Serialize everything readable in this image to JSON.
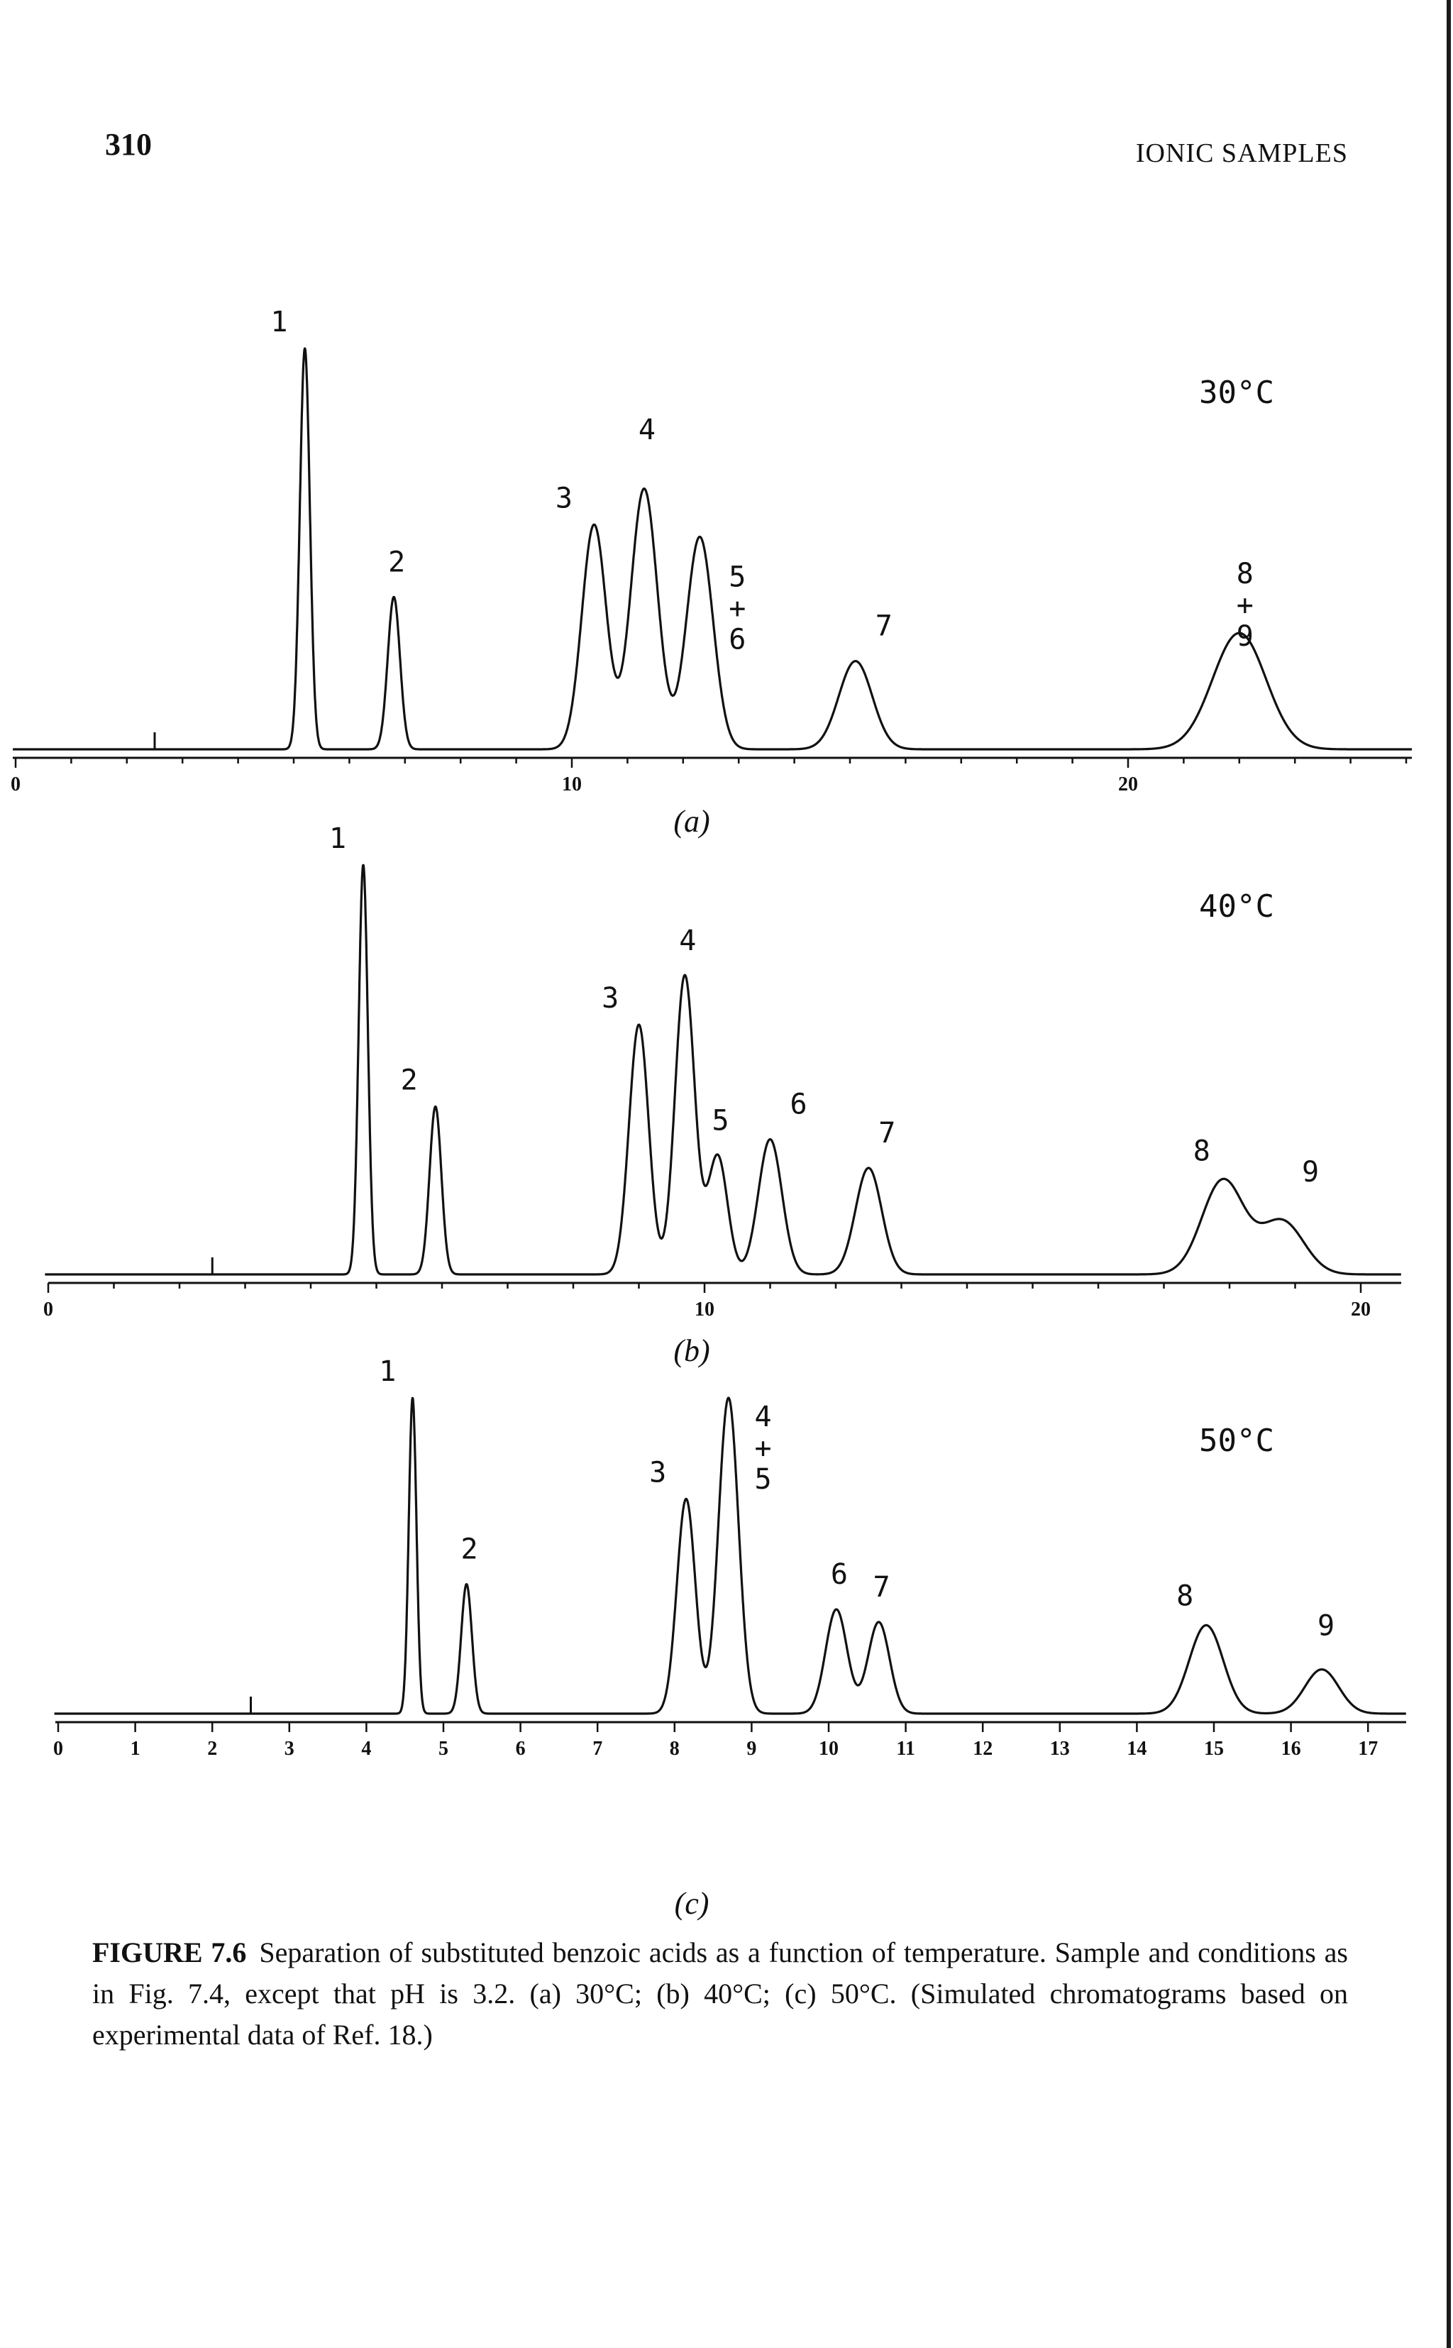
{
  "page": {
    "page_number": "310",
    "running_head": "IONIC SAMPLES"
  },
  "caption": {
    "label": "FIGURE 7.6",
    "text": "Separation of substituted benzoic acids as a function of temperature. Sample and conditions as in Fig. 7.4, except that pH is 3.2. (a) 30°C; (b) 40°C; (c) 50°C. (Simulated chromatograms based on experimental data of Ref. 18.)"
  },
  "colors": {
    "ink": "#111111",
    "paper": "#ffffff"
  },
  "chart_data": [
    {
      "type": "line",
      "panel_label": "(a)",
      "temperature_label": "30°C",
      "injection_mark_x": 2.5,
      "xlim": [
        0,
        25
      ],
      "ylim": [
        0,
        1.0
      ],
      "tick_labels": [
        0,
        10,
        20
      ],
      "minor_ticks": 1,
      "peaks": [
        {
          "label": "1",
          "x": 5.2,
          "height": 1.0,
          "width": 0.09
        },
        {
          "label": "2",
          "x": 6.8,
          "height": 0.38,
          "width": 0.11
        },
        {
          "label": "3",
          "x": 10.4,
          "height": 0.56,
          "width": 0.22
        },
        {
          "label": "4",
          "x": 11.3,
          "height": 0.65,
          "width": 0.24
        },
        {
          "label": "5\n+\n6",
          "x": 12.3,
          "height": 0.53,
          "width": 0.24
        },
        {
          "label": "7",
          "x": 15.1,
          "height": 0.22,
          "width": 0.3
        },
        {
          "label": "8\n+\n9",
          "x": 22.0,
          "height": 0.29,
          "width": 0.48
        }
      ]
    },
    {
      "type": "line",
      "panel_label": "(b)",
      "temperature_label": "40°C",
      "injection_mark_x": 2.5,
      "xlim": [
        0,
        21
      ],
      "ylim": [
        0,
        1.0
      ],
      "tick_labels": [
        0,
        10,
        20
      ],
      "minor_ticks": 1,
      "peaks": [
        {
          "label": "1",
          "x": 4.8,
          "height": 1.0,
          "width": 0.07
        },
        {
          "label": "2",
          "x": 5.9,
          "height": 0.41,
          "width": 0.09
        },
        {
          "label": "3",
          "x": 9.0,
          "height": 0.61,
          "width": 0.15
        },
        {
          "label": "4",
          "x": 9.7,
          "height": 0.73,
          "width": 0.15
        },
        {
          "label": "5",
          "x": 10.2,
          "height": 0.29,
          "width": 0.15
        },
        {
          "label": "6",
          "x": 11.0,
          "height": 0.33,
          "width": 0.18
        },
        {
          "label": "7",
          "x": 12.5,
          "height": 0.26,
          "width": 0.2
        },
        {
          "label": "8",
          "x": 17.9,
          "height": 0.23,
          "width": 0.32
        },
        {
          "label": "9",
          "x": 18.8,
          "height": 0.13,
          "width": 0.33
        }
      ]
    },
    {
      "type": "line",
      "panel_label": "(c)",
      "temperature_label": "50°C",
      "injection_mark_x": 2.5,
      "xlim": [
        0,
        17.5
      ],
      "ylim": [
        0,
        1.0
      ],
      "tick_labels": [
        0,
        1,
        2,
        3,
        4,
        5,
        6,
        7,
        8,
        9,
        10,
        11,
        12,
        13,
        14,
        15,
        16,
        17
      ],
      "minor_ticks": 1,
      "peaks": [
        {
          "label": "1",
          "x": 4.6,
          "height": 1.0,
          "width": 0.05
        },
        {
          "label": "2",
          "x": 5.3,
          "height": 0.41,
          "width": 0.07
        },
        {
          "label": "3",
          "x": 8.15,
          "height": 0.68,
          "width": 0.12
        },
        {
          "label": "4\n+\n5",
          "x": 8.7,
          "height": 1.0,
          "width": 0.13
        },
        {
          "label": "6",
          "x": 10.1,
          "height": 0.33,
          "width": 0.14
        },
        {
          "label": "7",
          "x": 10.65,
          "height": 0.29,
          "width": 0.14
        },
        {
          "label": "8",
          "x": 14.9,
          "height": 0.28,
          "width": 0.22
        },
        {
          "label": "9",
          "x": 16.4,
          "height": 0.14,
          "width": 0.22
        }
      ]
    }
  ]
}
